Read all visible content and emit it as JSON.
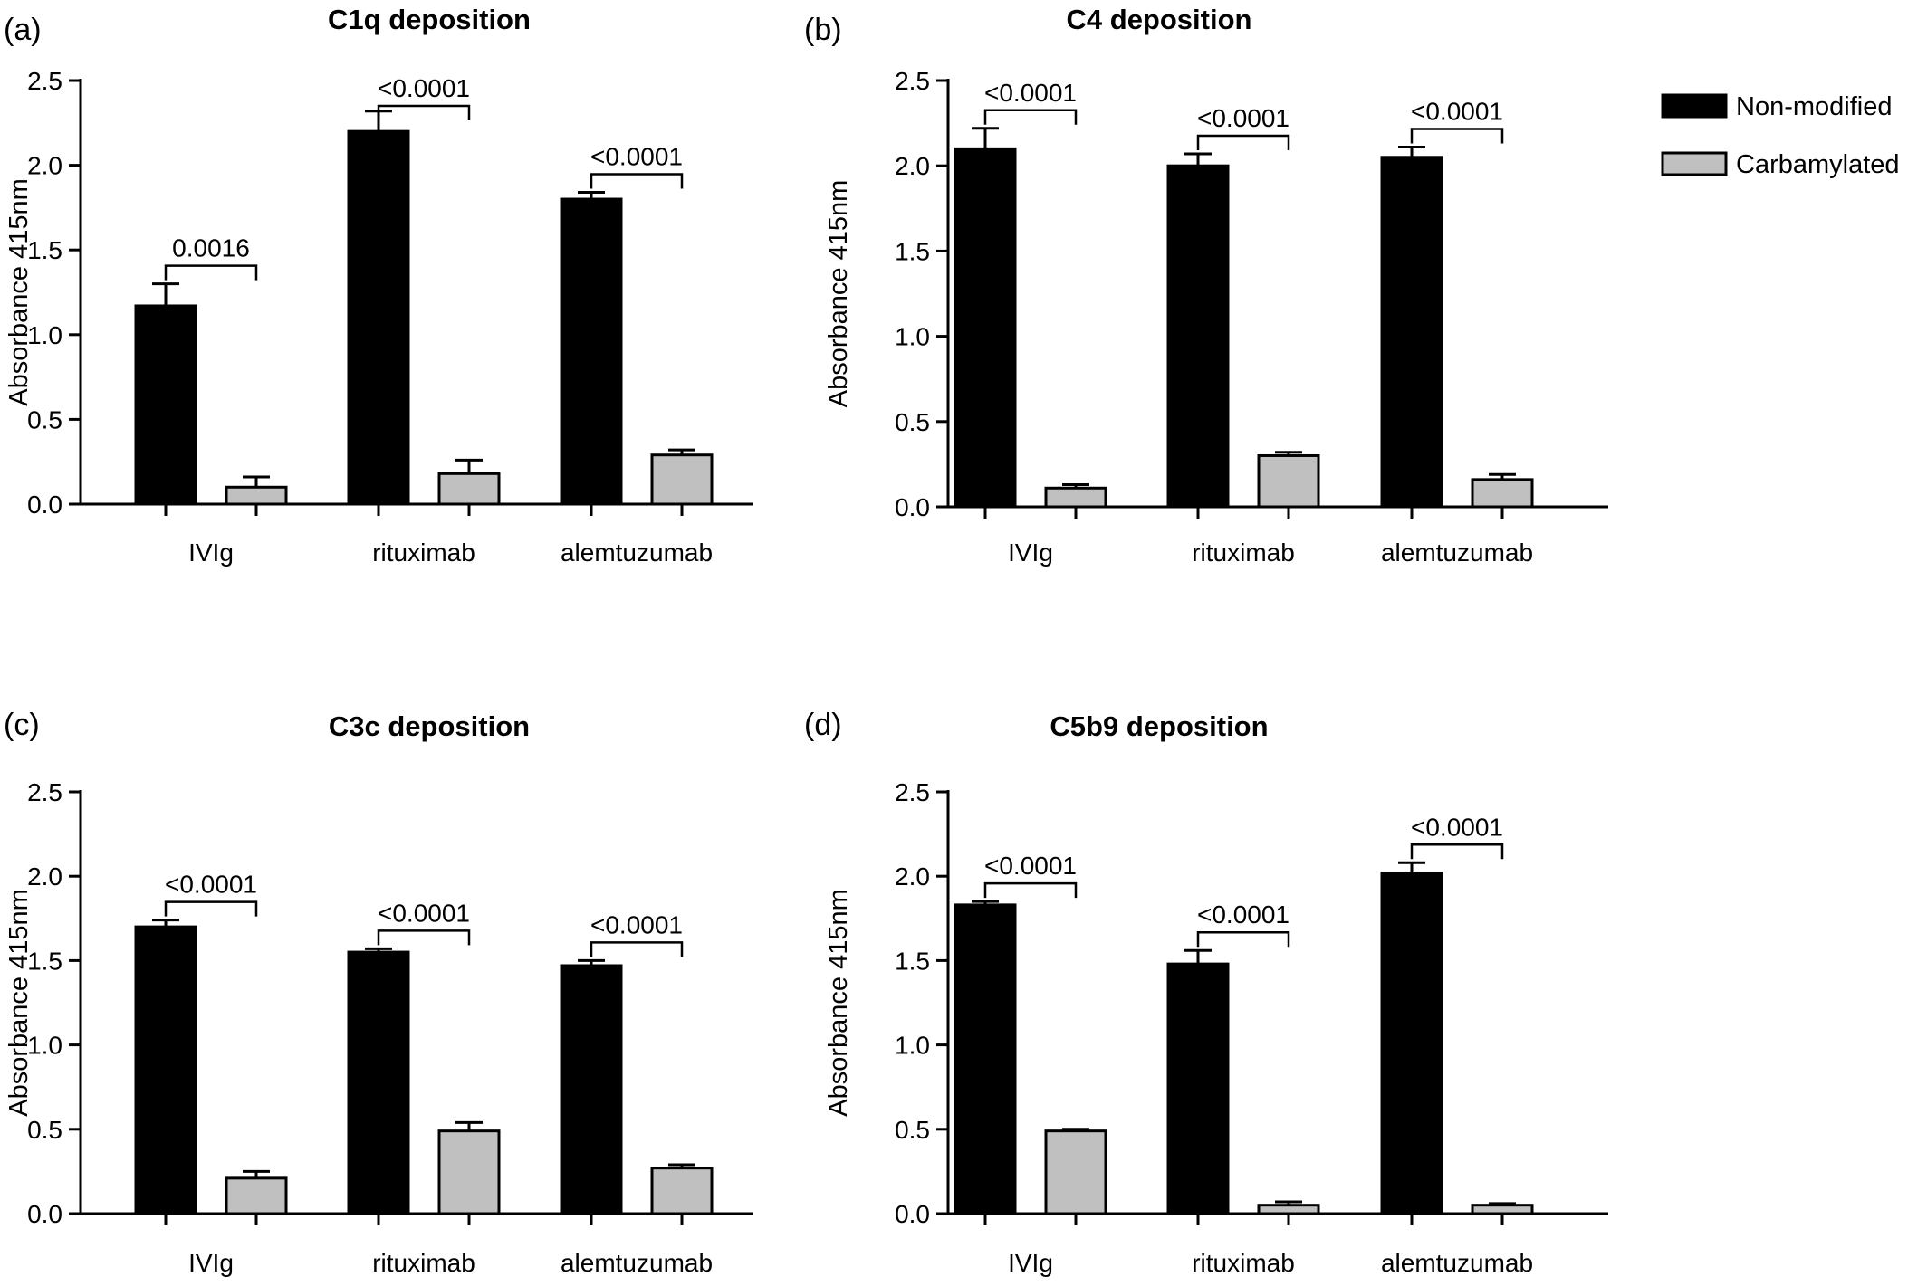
{
  "legend": {
    "items": [
      {
        "label": "Non-modified",
        "color": "#000000"
      },
      {
        "label": "Carbamylated",
        "color": "#c0c0c0"
      }
    ]
  },
  "chart_data": [
    {
      "panel_label": "(a)",
      "type": "bar",
      "title": "C1q deposition",
      "ylabel": "Absorbance 415nm",
      "ylim": [
        0,
        2.5
      ],
      "yticks": [
        "0.0",
        "0.5",
        "1.0",
        "1.5",
        "2.0",
        "2.5"
      ],
      "categories": [
        "IVIg",
        "rituximab",
        "alemtuzumab"
      ],
      "series": [
        {
          "name": "Non-modified",
          "values": [
            1.17,
            2.2,
            1.8
          ],
          "errors": [
            0.13,
            0.12,
            0.04
          ]
        },
        {
          "name": "Carbamylated",
          "values": [
            0.1,
            0.18,
            0.29
          ],
          "errors": [
            0.06,
            0.08,
            0.03
          ]
        }
      ],
      "annotations": [
        "0.0016",
        "<0.0001",
        "<0.0001"
      ]
    },
    {
      "panel_label": "(b)",
      "type": "bar",
      "title": "C4 deposition",
      "ylabel": "Absorbance 415nm",
      "ylim": [
        0,
        2.5
      ],
      "yticks": [
        "0.0",
        "0.5",
        "1.0",
        "1.5",
        "2.0",
        "2.5"
      ],
      "categories": [
        "IVIg",
        "rituximab",
        "alemtuzumab"
      ],
      "series": [
        {
          "name": "Non-modified",
          "values": [
            2.1,
            2.0,
            2.05
          ],
          "errors": [
            0.12,
            0.07,
            0.06
          ]
        },
        {
          "name": "Carbamylated",
          "values": [
            0.11,
            0.3,
            0.16
          ],
          "errors": [
            0.02,
            0.02,
            0.03
          ]
        }
      ],
      "annotations": [
        "<0.0001",
        "<0.0001",
        "<0.0001"
      ]
    },
    {
      "panel_label": "(c)",
      "type": "bar",
      "title": "C3c deposition",
      "ylabel": "Absorbance 415nm",
      "ylim": [
        0,
        2.5
      ],
      "yticks": [
        "0.0",
        "0.5",
        "1.0",
        "1.5",
        "2.0",
        "2.5"
      ],
      "categories": [
        "IVIg",
        "rituximab",
        "alemtuzumab"
      ],
      "series": [
        {
          "name": "Non-modified",
          "values": [
            1.7,
            1.55,
            1.47
          ],
          "errors": [
            0.04,
            0.02,
            0.03
          ]
        },
        {
          "name": "Carbamylated",
          "values": [
            0.21,
            0.49,
            0.27
          ],
          "errors": [
            0.04,
            0.05,
            0.02
          ]
        }
      ],
      "annotations": [
        "<0.0001",
        "<0.0001",
        "<0.0001"
      ]
    },
    {
      "panel_label": "(d)",
      "type": "bar",
      "title": "C5b9 deposition",
      "ylabel": "Absorbance 415nm",
      "ylim": [
        0,
        2.5
      ],
      "yticks": [
        "0.0",
        "0.5",
        "1.0",
        "1.5",
        "2.0",
        "2.5"
      ],
      "categories": [
        "IVIg",
        "rituximab",
        "alemtuzumab"
      ],
      "series": [
        {
          "name": "Non-modified",
          "values": [
            1.83,
            1.48,
            2.02
          ],
          "errors": [
            0.02,
            0.08,
            0.06
          ]
        },
        {
          "name": "Carbamylated",
          "values": [
            0.49,
            0.05,
            0.05
          ],
          "errors": [
            0.01,
            0.02,
            0.01
          ]
        }
      ],
      "annotations": [
        "<0.0001",
        "<0.0001",
        "<0.0001"
      ]
    }
  ]
}
